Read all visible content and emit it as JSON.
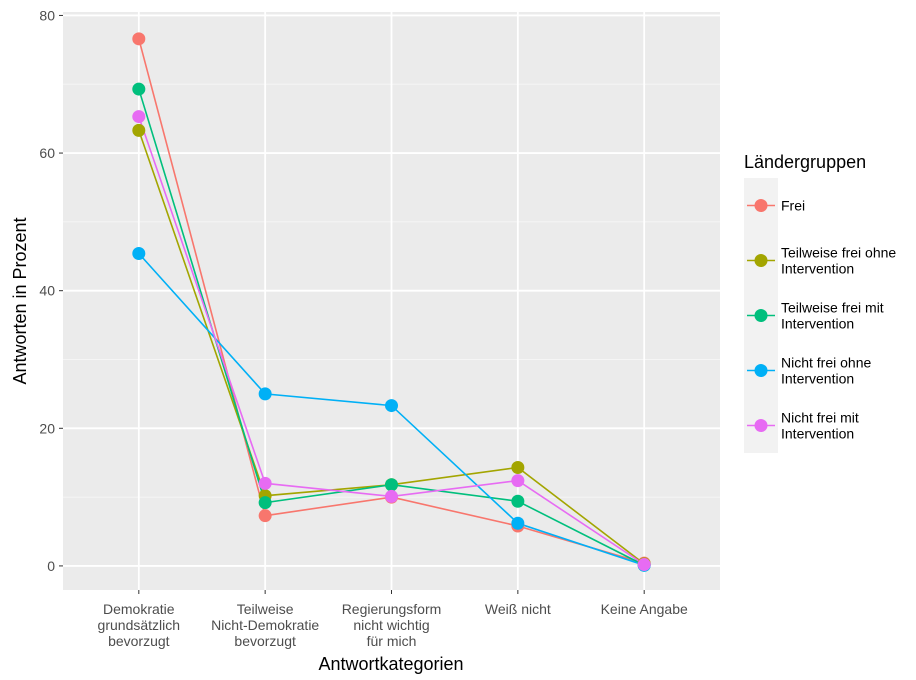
{
  "chart_data": {
    "type": "line",
    "title": "",
    "xlabel": "Antwortkategorien",
    "ylabel": "Antworten in Prozent",
    "categories": [
      [
        "Demokratie",
        "grundsätzlich",
        "bevorzugt"
      ],
      [
        "Teilweise",
        "Nicht-Demokratie",
        "bevorzugt"
      ],
      [
        "Regierungsform",
        "nicht wichtig",
        "für mich"
      ],
      [
        "Weiß nicht"
      ],
      [
        "Keine Angabe"
      ]
    ],
    "yticks": [
      "0",
      "20",
      "40",
      "60",
      "80"
    ],
    "ytick_values": [
      0,
      20,
      40,
      60,
      80
    ],
    "ylim": [
      -3.5,
      80.5
    ],
    "grid": true,
    "legend": {
      "title": "Ländergruppen",
      "placement": "right"
    },
    "series": [
      {
        "name": [
          "Frei"
        ],
        "color": "#F8766D",
        "values": [
          76.6,
          7.3,
          10.0,
          5.8,
          0.4
        ]
      },
      {
        "name": [
          "Teilweise frei ohne",
          "Intervention"
        ],
        "color": "#A3A500",
        "values": [
          63.3,
          10.2,
          11.8,
          14.3,
          0.3
        ]
      },
      {
        "name": [
          "Teilweise frei mit",
          "Intervention"
        ],
        "color": "#00BF7D",
        "values": [
          69.3,
          9.2,
          11.8,
          9.4,
          0.1
        ]
      },
      {
        "name": [
          "Nicht frei ohne",
          "Intervention"
        ],
        "color": "#00B0F6",
        "values": [
          45.4,
          25.0,
          23.3,
          6.2,
          0.1
        ]
      },
      {
        "name": [
          "Nicht frei mit",
          "Intervention"
        ],
        "color": "#E76BF3",
        "values": [
          65.3,
          12.0,
          10.1,
          12.4,
          0.2
        ]
      }
    ]
  }
}
